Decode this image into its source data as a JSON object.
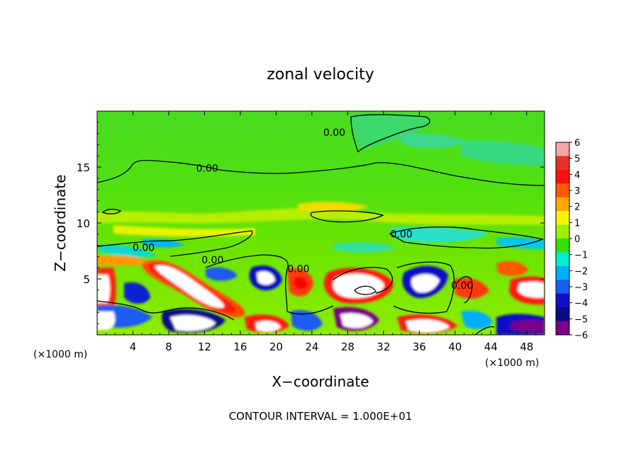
{
  "chart_data": {
    "type": "heatmap",
    "title": "zonal velocity",
    "xlabel": "X−coordinate",
    "ylabel": "Z−coordinate",
    "x_unit_left": "(×1000 m)",
    "x_unit_right": "(×1000 m)",
    "xlim": [
      0,
      50
    ],
    "ylim": [
      0,
      20
    ],
    "xticks": [
      4,
      8,
      12,
      16,
      20,
      24,
      28,
      32,
      36,
      40,
      44,
      48
    ],
    "xtick_labels": [
      "4",
      "8",
      "12",
      "16",
      "20",
      "24",
      "28",
      "32",
      "36",
      "40",
      "44",
      "48"
    ],
    "yticks": [
      5,
      10,
      15
    ],
    "ytick_labels": [
      "5",
      "10",
      "15"
    ],
    "colorbar": {
      "range": [
        -6,
        6
      ],
      "labels": [
        "6",
        "5",
        "4",
        "3",
        "2",
        "1",
        "0",
        "−1",
        "−2",
        "−3",
        "−4",
        "−5",
        "−6"
      ],
      "values": [
        6,
        5,
        4,
        3,
        2,
        1,
        0,
        -1,
        -2,
        -3,
        -4,
        -5,
        -6
      ],
      "colors": [
        "#f4a6a6",
        "#e8302a",
        "#ff1010",
        "#ff5a00",
        "#ffa800",
        "#f5f500",
        "#9bf000",
        "#33e000",
        "#00eecc",
        "#00b0ff",
        "#1a5cf0",
        "#1010c8",
        "#0a0a8a",
        "#7a008a"
      ]
    },
    "contour_labels": [
      {
        "text": "0.00",
        "x": 26.5,
        "y": 17.8
      },
      {
        "text": "0.00",
        "x": 12.3,
        "y": 14.6
      },
      {
        "text": "0.00",
        "x": 5.2,
        "y": 7.5
      },
      {
        "text": "0.00",
        "x": 12.9,
        "y": 6.4
      },
      {
        "text": "0.00",
        "x": 22.5,
        "y": 5.6
      },
      {
        "text": "0.00",
        "x": 34.0,
        "y": 8.7
      },
      {
        "text": "0.00",
        "x": 40.8,
        "y": 4.1
      }
    ],
    "footer": "CONTOUR INTERVAL = 1.000E+01"
  },
  "colors": {
    "background_field": "#4ddc00",
    "positive_core": "#ffffff",
    "negative_core": "#ffffff"
  }
}
